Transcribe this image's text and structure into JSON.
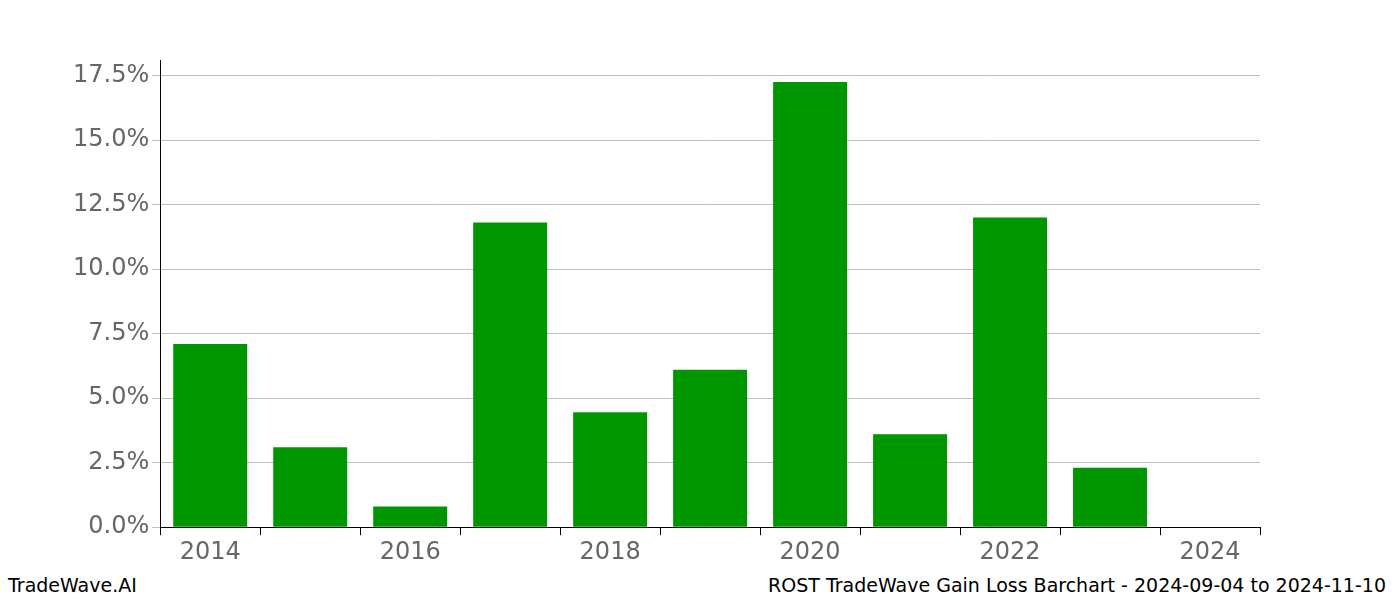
{
  "chart_data": {
    "type": "bar",
    "categories": [
      "2014",
      null,
      "2016",
      null,
      "2018",
      null,
      "2020",
      null,
      "2022",
      null,
      "2024"
    ],
    "values": [
      7.1,
      3.1,
      0.8,
      11.8,
      4.45,
      6.1,
      17.25,
      3.6,
      12.0,
      2.3,
      0
    ],
    "color": "#009600",
    "ylim": [
      0,
      18.1
    ],
    "yticks": [
      {
        "value": 0,
        "label": "0.0%"
      },
      {
        "value": 2.5,
        "label": "2.5%"
      },
      {
        "value": 5,
        "label": "5.0%"
      },
      {
        "value": 7.5,
        "label": "7.5%"
      },
      {
        "value": 10,
        "label": "10.0%"
      },
      {
        "value": 12.5,
        "label": "12.5%"
      },
      {
        "value": 15,
        "label": "15.0%"
      },
      {
        "value": 17.5,
        "label": "17.5%"
      }
    ],
    "grid": true,
    "data_labels": false,
    "annotations": [
      "TradeWave.AI",
      "ROST TradeWave Gain Loss Barchart - 2024-09-04 to 2024-11-10"
    ]
  }
}
